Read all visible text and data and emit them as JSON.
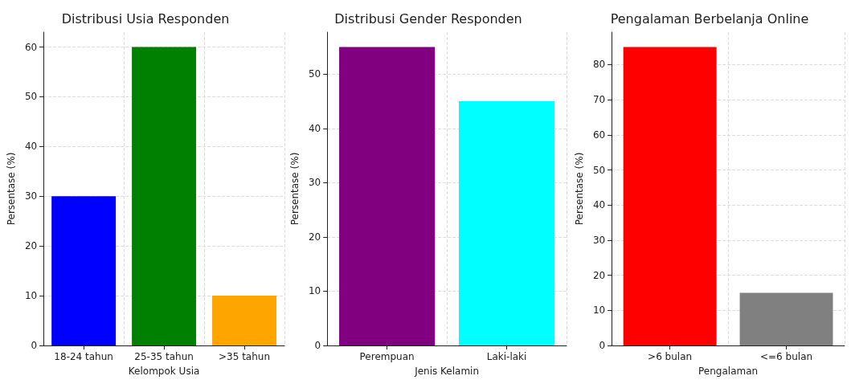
{
  "chart_data": [
    {
      "type": "bar",
      "title": "Distribusi Usia Responden",
      "xlabel": "Kelompok Usia",
      "ylabel": "Persentase (%)",
      "categories": [
        "18-24 tahun",
        "25-35 tahun",
        ">35 tahun"
      ],
      "values": [
        30,
        60,
        10
      ],
      "colors": [
        "#0000ff",
        "#008000",
        "#ffa500"
      ],
      "ylim": [
        0,
        63
      ],
      "yticks": [
        0,
        10,
        20,
        30,
        40,
        50,
        60
      ],
      "grid": true
    },
    {
      "type": "bar",
      "title": "Distribusi Gender Responden",
      "xlabel": "Jenis Kelamin",
      "ylabel": "Persentase (%)",
      "categories": [
        "Perempuan",
        "Laki-laki"
      ],
      "values": [
        55,
        45
      ],
      "colors": [
        "#800080",
        "#00ffff"
      ],
      "ylim": [
        0,
        57.75
      ],
      "yticks": [
        0,
        10,
        20,
        30,
        40,
        50
      ],
      "grid": true
    },
    {
      "type": "bar",
      "title": "Pengalaman Berbelanja Online",
      "xlabel": "Pengalaman",
      "ylabel": "Persentase (%)",
      "categories": [
        ">6 bulan",
        "<=6 bulan"
      ],
      "values": [
        85,
        15
      ],
      "colors": [
        "#ff0000",
        "#808080"
      ],
      "ylim": [
        0,
        89.25
      ],
      "yticks": [
        0,
        10,
        20,
        30,
        40,
        50,
        60,
        70,
        80
      ],
      "grid": true
    }
  ]
}
